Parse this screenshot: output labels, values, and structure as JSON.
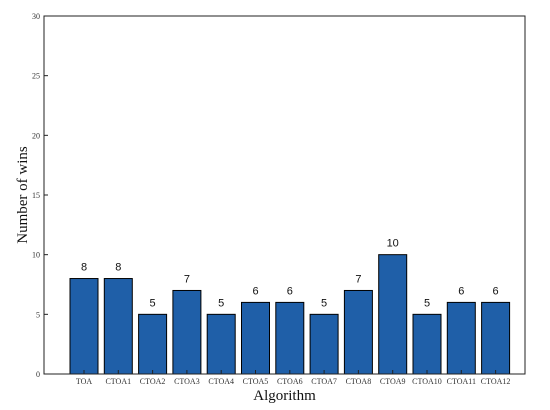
{
  "chart_data": {
    "type": "bar",
    "title": "",
    "xlabel": "Algorithm",
    "ylabel": "Number of wins",
    "ylim": [
      0,
      30
    ],
    "yticks": [
      0,
      5,
      10,
      15,
      20,
      25,
      30
    ],
    "categories": [
      "TOA",
      "CTOA1",
      "CTOA2",
      "CTOA3",
      "CTOA4",
      "CTOA5",
      "CTOA6",
      "CTOA7",
      "CTOA8",
      "CTOA9",
      "CTOA10",
      "CTOA11",
      "CTOA12"
    ],
    "values": [
      8,
      8,
      5,
      7,
      5,
      6,
      6,
      5,
      7,
      10,
      5,
      6,
      6
    ],
    "bar_color": "#1f5fa8",
    "grid": false,
    "data_labels": true
  }
}
